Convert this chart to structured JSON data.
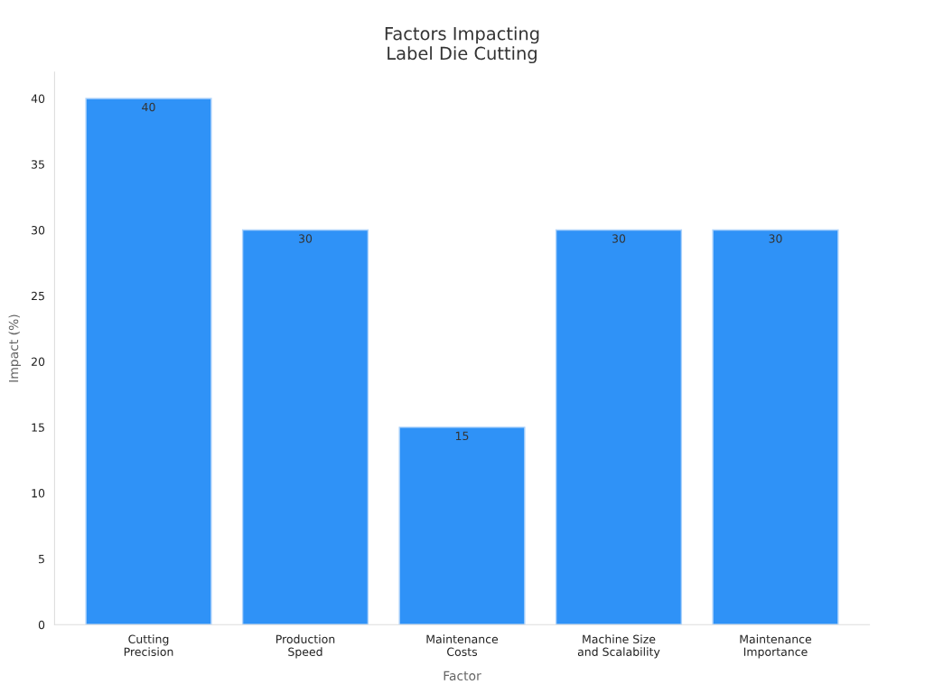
{
  "chart_data": {
    "type": "bar",
    "title": "Factors Impacting\nLabel Die Cutting",
    "xlabel": "Factor",
    "ylabel": "Impact (%)",
    "categories": [
      "Cutting\nPrecision",
      "Production\nSpeed",
      "Maintenance\nCosts",
      "Machine Size\nand Scalability",
      "Maintenance\nImportance"
    ],
    "values": [
      40,
      30,
      15,
      30,
      30
    ],
    "color": "#2f92f7",
    "ylim": [
      0,
      42
    ],
    "yticks": [
      0,
      5,
      10,
      15,
      20,
      25,
      30,
      35,
      40
    ],
    "data_labels": true,
    "grid": false
  }
}
